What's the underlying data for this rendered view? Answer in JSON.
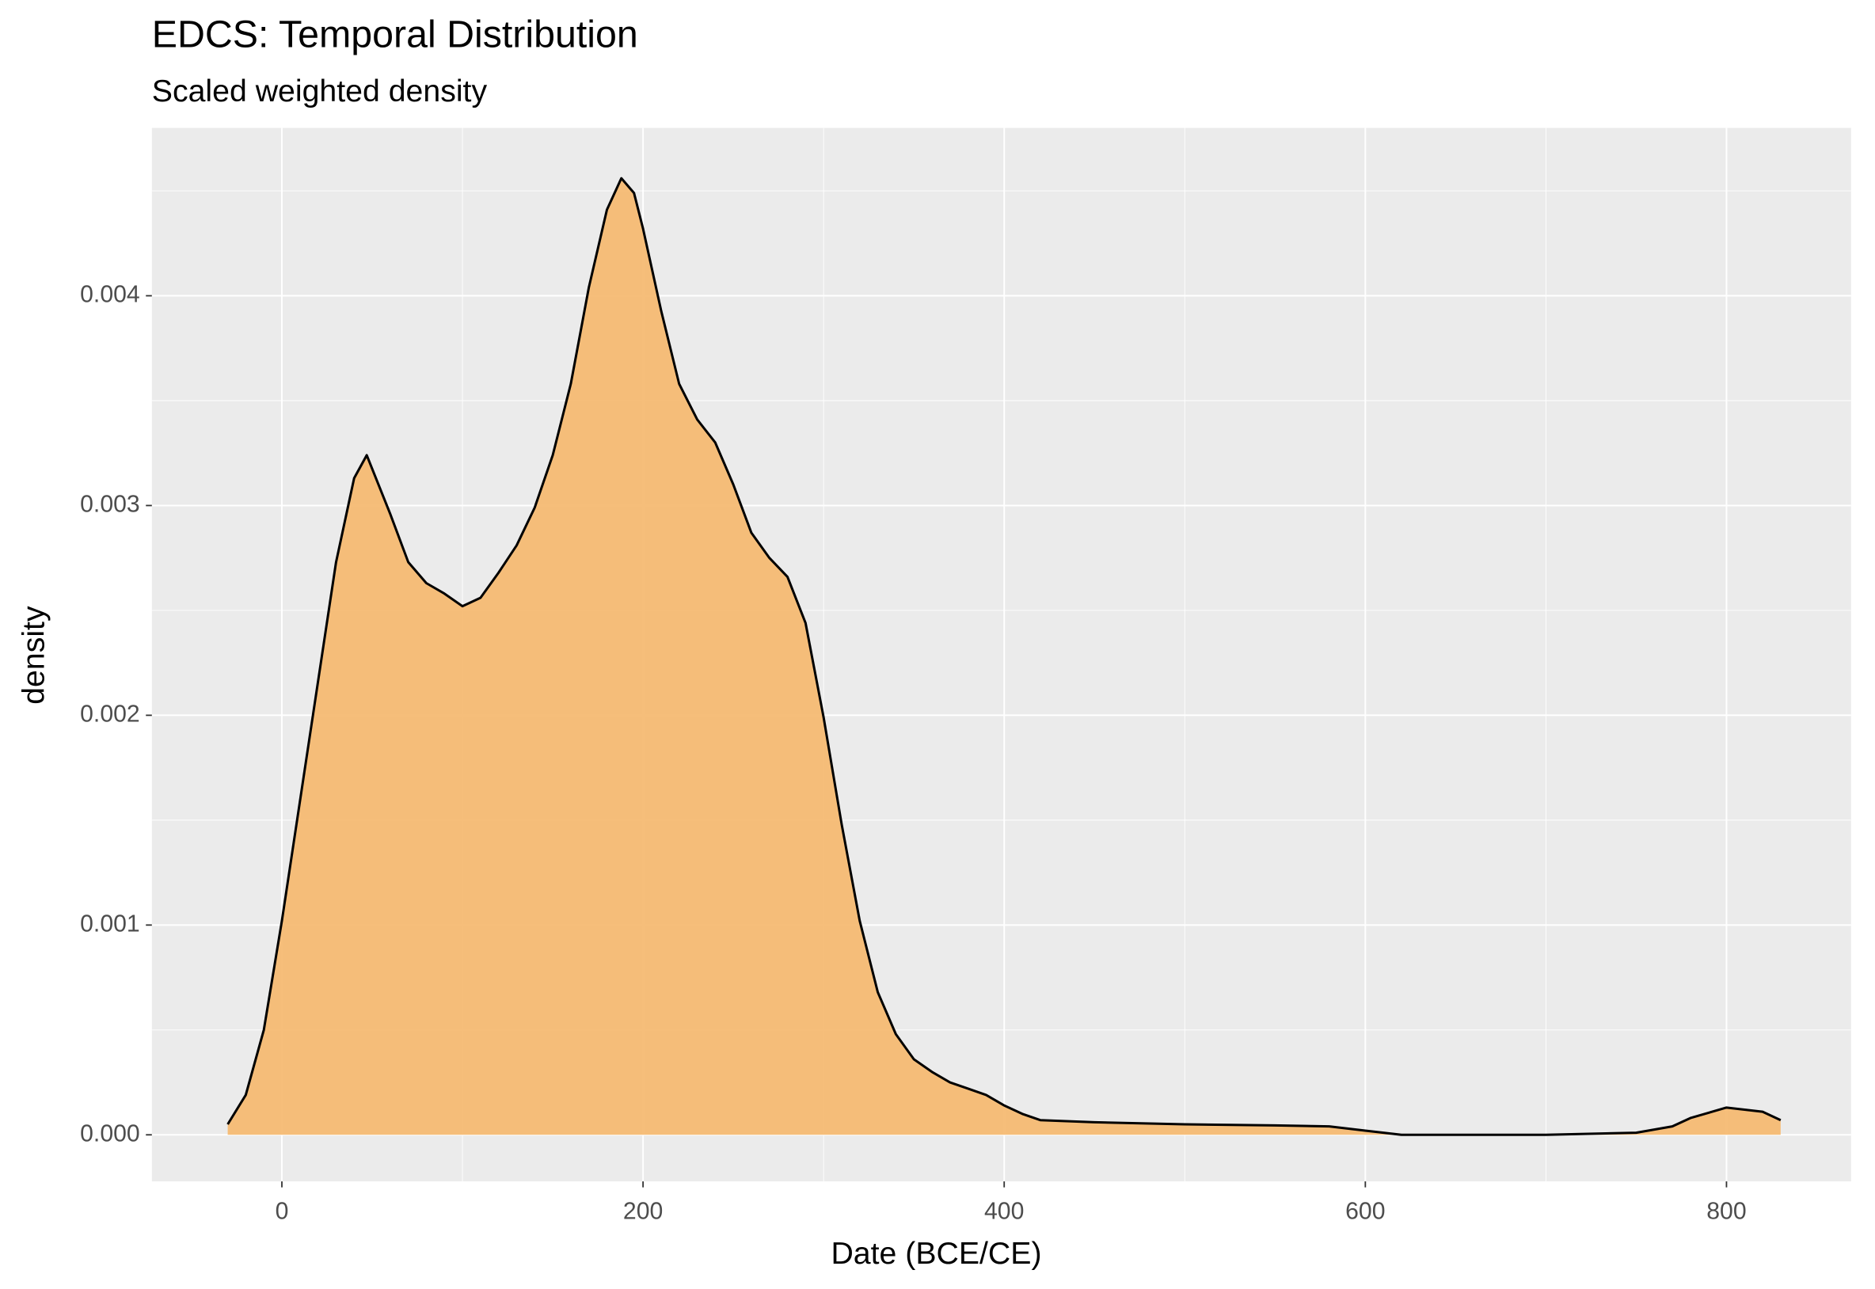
{
  "chart_data": {
    "type": "area",
    "title": "EDCS: Temporal Distribution",
    "subtitle": "Scaled weighted density",
    "x_label": "Date (BCE/CE)",
    "y_label": "density",
    "x": [
      -30,
      -20,
      -10,
      0,
      10,
      20,
      30,
      40,
      47,
      60,
      70,
      80,
      90,
      100,
      110,
      120,
      130,
      140,
      150,
      160,
      170,
      180,
      188,
      195,
      200,
      210,
      220,
      230,
      240,
      250,
      260,
      270,
      280,
      290,
      300,
      310,
      320,
      330,
      340,
      350,
      360,
      370,
      380,
      390,
      400,
      410,
      420,
      450,
      500,
      550,
      580,
      600,
      620,
      700,
      750,
      770,
      780,
      800,
      820,
      830
    ],
    "values": [
      5e-05,
      0.00019,
      0.0005,
      0.00102,
      0.00159,
      0.00216,
      0.00273,
      0.00313,
      0.00324,
      0.00296,
      0.00273,
      0.00263,
      0.00258,
      0.00252,
      0.00256,
      0.00268,
      0.00281,
      0.00299,
      0.00324,
      0.00358,
      0.00404,
      0.00441,
      0.00456,
      0.00449,
      0.00432,
      0.00393,
      0.00358,
      0.00341,
      0.0033,
      0.0031,
      0.00287,
      0.00275,
      0.00266,
      0.00244,
      0.00199,
      0.00148,
      0.00102,
      0.00068,
      0.00048,
      0.00036,
      0.0003,
      0.00025,
      0.00022,
      0.00019,
      0.00014,
      0.0001,
      7e-05,
      6e-05,
      5e-05,
      4.5e-05,
      4e-05,
      2e-05,
      0,
      0,
      1e-05,
      4e-05,
      8e-05,
      0.00013,
      0.00011,
      7e-05
    ],
    "color": "#f5bb73",
    "line_color": "#000000",
    "xlim": [
      -72,
      869
    ],
    "xticks": [
      0,
      200,
      400,
      600,
      800
    ],
    "ylim": [
      -0.000222,
      0.0048
    ],
    "yticks": [
      {
        "value": 0,
        "label": "0.000"
      },
      0.001,
      0.002,
      0.003,
      0.004
    ],
    "grid": true
  }
}
